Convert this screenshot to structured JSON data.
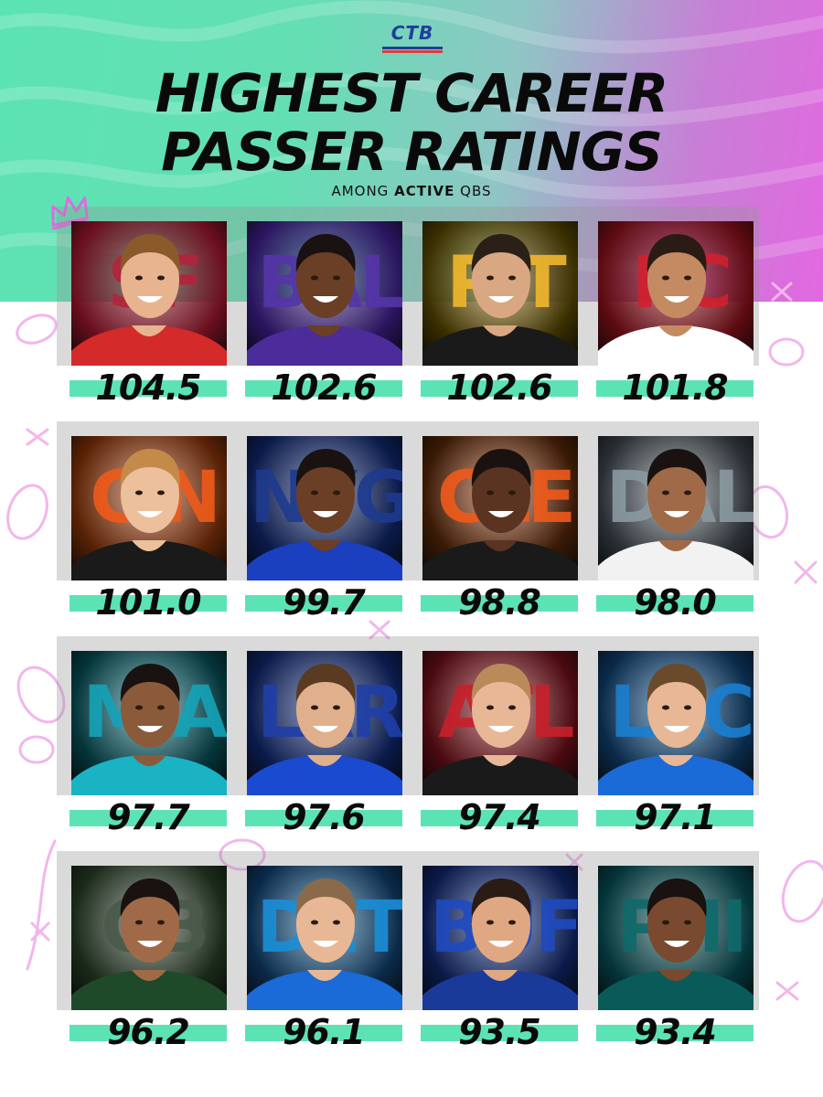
{
  "header": {
    "logo": "CTB",
    "title_line1": "HIGHEST CAREER",
    "title_line2": "PASSER RATINGS",
    "subtitle_prefix": "AMONG",
    "subtitle_emphasis": "ACTIVE",
    "subtitle_suffix": "QBS"
  },
  "colors": {
    "mint": "#5ce3b4",
    "magenta": "#e268e0",
    "text": "#0a0a0a",
    "logo_blue": "#1d3f9a",
    "logo_red": "#e23a3a"
  },
  "players": [
    {
      "team": "SF",
      "rating": "104.5",
      "bg": "#6b0f1e",
      "team_color": "#b3233b",
      "jersey": "#d42a2a",
      "skin": "#e7b48f",
      "hair": "#8a5a2b"
    },
    {
      "team": "BAL",
      "rating": "102.6",
      "bg": "#2a1560",
      "team_color": "#5535a8",
      "jersey": "#4b2c9a",
      "skin": "#6b3e26",
      "hair": "#1a1210"
    },
    {
      "team": "PIT",
      "rating": "102.6",
      "bg": "#3b3000",
      "team_color": "#f1b82d",
      "jersey": "#1a1a1a",
      "skin": "#d9a882",
      "hair": "#2a2018"
    },
    {
      "team": "KC",
      "rating": "101.8",
      "bg": "#5e0b12",
      "team_color": "#d2202f",
      "jersey": "#ffffff",
      "skin": "#c48b62",
      "hair": "#2a1c14"
    },
    {
      "team": "CIN",
      "rating": "101.0",
      "bg": "#5a2205",
      "team_color": "#f05a1a",
      "jersey": "#1a1a1a",
      "skin": "#ecc09c",
      "hair": "#c48a4a"
    },
    {
      "team": "NYG",
      "rating": "99.7",
      "bg": "#0a1a4a",
      "team_color": "#1f3a8f",
      "jersey": "#1a3fbf",
      "skin": "#6b3e26",
      "hair": "#1a1210"
    },
    {
      "team": "CLE",
      "rating": "98.8",
      "bg": "#3a1a05",
      "team_color": "#f05a1a",
      "jersey": "#1a1a1a",
      "skin": "#5a3420",
      "hair": "#1a1210"
    },
    {
      "team": "DAL",
      "rating": "98.0",
      "bg": "#2a2f35",
      "team_color": "#8a9aa0",
      "jersey": "#f2f2f2",
      "skin": "#a06a48",
      "hair": "#1a1210"
    },
    {
      "team": "MIA",
      "rating": "97.7",
      "bg": "#04353a",
      "team_color": "#14a3b8",
      "jersey": "#1ab3c4",
      "skin": "#8a5a3a",
      "hair": "#1a1210"
    },
    {
      "team": "LAR",
      "rating": "97.6",
      "bg": "#0a1a4a",
      "team_color": "#1f3fa8",
      "jersey": "#1a4ad0",
      "skin": "#e0b08c",
      "hair": "#5a3a20"
    },
    {
      "team": "ATL",
      "rating": "97.4",
      "bg": "#4a0a10",
      "team_color": "#c8202a",
      "jersey": "#1a1a1a",
      "skin": "#e8b896",
      "hair": "#b98a5a"
    },
    {
      "team": "LAC",
      "rating": "97.1",
      "bg": "#0a2a4a",
      "team_color": "#1a7fd0",
      "jersey": "#1a6ad8",
      "skin": "#e8b896",
      "hair": "#6a4a2a"
    },
    {
      "team": "GB",
      "rating": "96.2",
      "bg": "#1a2a1a",
      "team_color": "#4a5a4a",
      "jersey": "#1f4a2a",
      "skin": "#a06a48",
      "hair": "#1a1210"
    },
    {
      "team": "DET",
      "rating": "96.1",
      "bg": "#0a2a4a",
      "team_color": "#1a8fd8",
      "jersey": "#1a6ad8",
      "skin": "#e8b896",
      "hair": "#8a6a4a"
    },
    {
      "team": "BUF",
      "rating": "93.5",
      "bg": "#0a1a4a",
      "team_color": "#1f4ac0",
      "jersey": "#1a3a9a",
      "skin": "#e0a882",
      "hair": "#2a1c14"
    },
    {
      "team": "PHI",
      "rating": "93.4",
      "bg": "#04353a",
      "team_color": "#0f6a6a",
      "jersey": "#0a5a5a",
      "skin": "#7a4a30",
      "hair": "#1a1210"
    }
  ]
}
